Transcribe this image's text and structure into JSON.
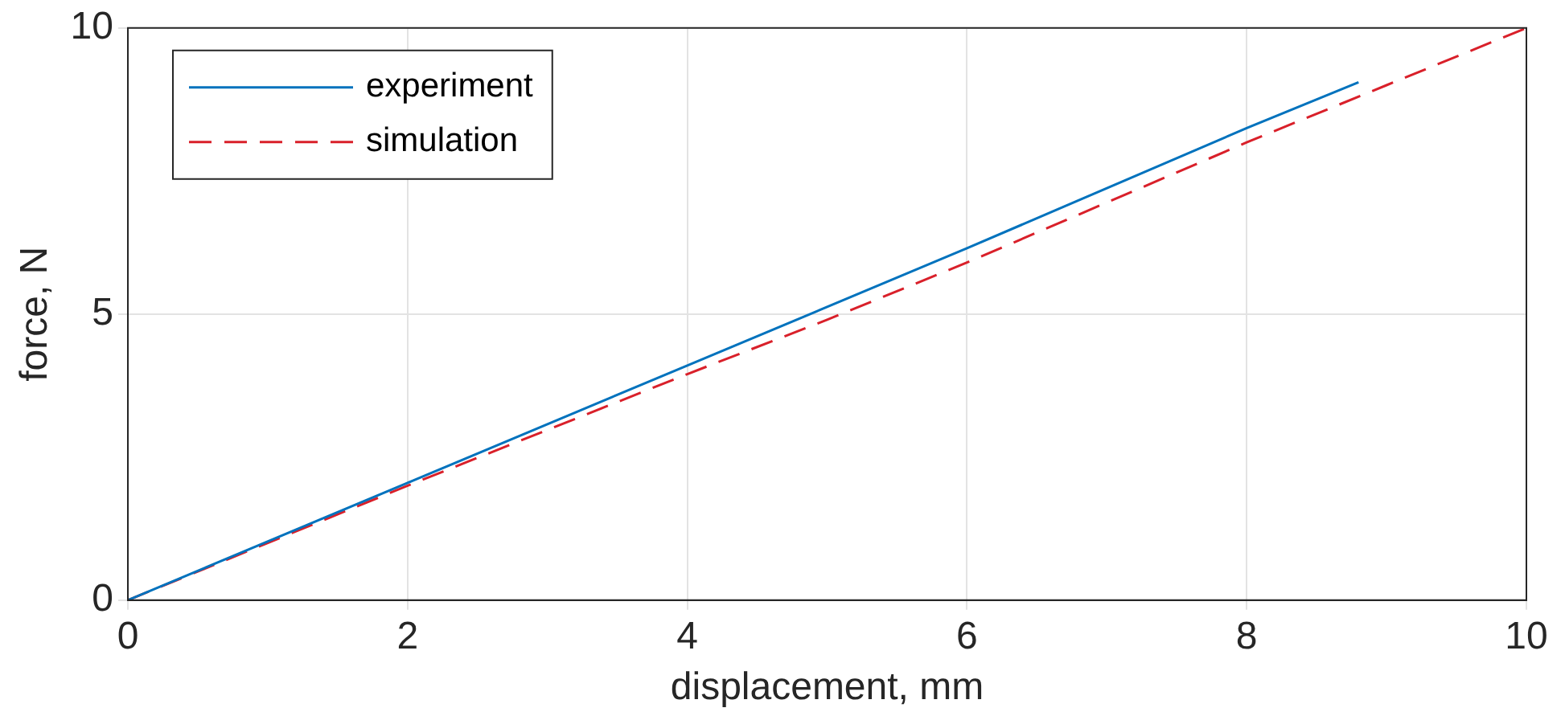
{
  "chart_data": {
    "type": "line",
    "xlabel": "displacement, mm",
    "ylabel": "force, N",
    "xlim": [
      0,
      10
    ],
    "xticks": [
      0,
      2,
      4,
      6,
      8,
      10
    ],
    "ylim": [
      0,
      10
    ],
    "yticks": [
      0,
      5,
      10
    ],
    "grid": true,
    "legend": "top left",
    "marker": "none",
    "series": [
      {
        "name": "experiment",
        "color": "#0072bd",
        "line_style": "solid",
        "x": [
          0,
          2,
          4,
          6,
          8,
          8.8
        ],
        "values": [
          0,
          2.05,
          4.1,
          6.15,
          8.25,
          9.05
        ]
      },
      {
        "name": "simulation",
        "color": "#d9202a",
        "line_style": "dashed",
        "x": [
          0,
          2,
          4,
          5,
          6,
          7,
          8,
          9,
          10
        ],
        "values": [
          0,
          2.0,
          3.95,
          4.9,
          5.9,
          6.95,
          8.0,
          9.0,
          10
        ]
      }
    ]
  }
}
